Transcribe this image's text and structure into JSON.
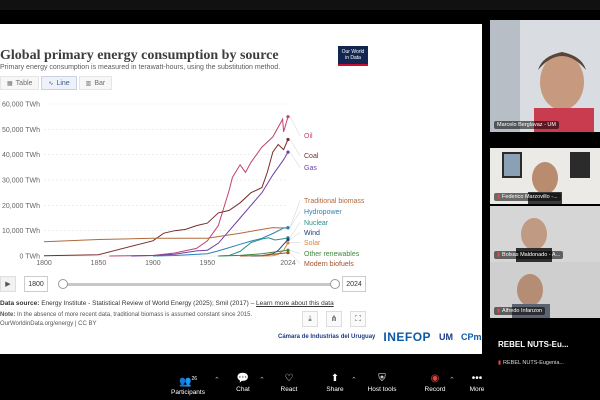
{
  "slide": {
    "title": "Global primary energy consumption by source",
    "subtitle": "Primary energy consumption is measured in terawatt-hours, using the substitution method.",
    "logo_line1": "Our World",
    "logo_line2": "in Data",
    "tabs": [
      {
        "label": "Table",
        "icon": "table-icon"
      },
      {
        "label": "Line",
        "icon": "line-chart-icon"
      },
      {
        "label": "Bar",
        "icon": "bar-chart-icon"
      }
    ],
    "timeline": {
      "start": "1800",
      "end": "2024"
    },
    "source_label": "Data source:",
    "source_text": "Energy Institute - Statistical Review of World Energy (2025); Smil (2017) –",
    "learn_more": "Learn more about this data",
    "note_label": "Note:",
    "note_text": "In the absence of more recent data, traditional biomass is assumed constant since 2015.",
    "license": "OurWorldinData.org/energy | CC BY",
    "sponsors": {
      "ciu": "Cámara de Industrias del Uruguay",
      "inefop": "INEFOP",
      "um": "UM",
      "cpml": "CPmL"
    }
  },
  "chart_data": {
    "type": "line",
    "title": "Global primary energy consumption by source",
    "ylabel": "",
    "xlim": [
      1800,
      2024
    ],
    "ylim": [
      0,
      60000
    ],
    "x_ticks": [
      1800,
      1850,
      1900,
      1950,
      2024
    ],
    "y_ticks": [
      {
        "value": 0,
        "label": "0 TWh"
      },
      {
        "value": 10000,
        "label": "10,000 TWh"
      },
      {
        "value": 20000,
        "label": "20,000 TWh"
      },
      {
        "value": 30000,
        "label": "30,000 TWh"
      },
      {
        "value": 40000,
        "label": "40,000 TWh"
      },
      {
        "value": 50000,
        "label": "50,000 TWh"
      },
      {
        "value": 60000,
        "label": "60,000 TWh"
      }
    ],
    "grid": true,
    "legend": "right",
    "series": [
      {
        "name": "Oil",
        "color": "#c1446f",
        "points": [
          [
            1860,
            0
          ],
          [
            1900,
            200
          ],
          [
            1920,
            1200
          ],
          [
            1940,
            3000
          ],
          [
            1950,
            6000
          ],
          [
            1960,
            12000
          ],
          [
            1970,
            26000
          ],
          [
            1973,
            31000
          ],
          [
            1980,
            36000
          ],
          [
            1985,
            33000
          ],
          [
            1990,
            37000
          ],
          [
            2000,
            43000
          ],
          [
            2010,
            47000
          ],
          [
            2019,
            54000
          ],
          [
            2020,
            49000
          ],
          [
            2024,
            55000
          ]
        ]
      },
      {
        "name": "Coal",
        "color": "#7b2b2b",
        "points": [
          [
            1800,
            100
          ],
          [
            1850,
            500
          ],
          [
            1900,
            6000
          ],
          [
            1910,
            9000
          ],
          [
            1920,
            10000
          ],
          [
            1930,
            10500
          ],
          [
            1940,
            12000
          ],
          [
            1950,
            13000
          ],
          [
            1960,
            17000
          ],
          [
            1970,
            18000
          ],
          [
            1980,
            21000
          ],
          [
            1990,
            25000
          ],
          [
            2000,
            27000
          ],
          [
            2005,
            33000
          ],
          [
            2010,
            41000
          ],
          [
            2015,
            44000
          ],
          [
            2020,
            42000
          ],
          [
            2024,
            46000
          ]
        ]
      },
      {
        "name": "Gas",
        "color": "#6c3fa5",
        "points": [
          [
            1880,
            0
          ],
          [
            1900,
            200
          ],
          [
            1920,
            700
          ],
          [
            1940,
            2000
          ],
          [
            1950,
            2300
          ],
          [
            1960,
            5000
          ],
          [
            1970,
            10000
          ],
          [
            1980,
            15000
          ],
          [
            1990,
            20000
          ],
          [
            2000,
            25000
          ],
          [
            2010,
            32000
          ],
          [
            2020,
            38000
          ],
          [
            2024,
            41000
          ]
        ]
      },
      {
        "name": "Traditional biomass",
        "color": "#b06a3b",
        "points": [
          [
            1800,
            5600
          ],
          [
            1850,
            6500
          ],
          [
            1900,
            7000
          ],
          [
            1950,
            7000
          ],
          [
            1980,
            9000
          ],
          [
            2000,
            10500
          ],
          [
            2010,
            11200
          ],
          [
            2015,
            11100
          ],
          [
            2024,
            11100
          ]
        ]
      },
      {
        "name": "Hydropower",
        "color": "#2d7fb8",
        "points": [
          [
            1900,
            0
          ],
          [
            1920,
            200
          ],
          [
            1950,
            900
          ],
          [
            1960,
            2000
          ],
          [
            1970,
            3300
          ],
          [
            1980,
            4600
          ],
          [
            1990,
            5900
          ],
          [
            2000,
            7000
          ],
          [
            2010,
            8900
          ],
          [
            2020,
            11000
          ],
          [
            2024,
            11200
          ]
        ]
      },
      {
        "name": "Nuclear",
        "color": "#2c8f8a",
        "points": [
          [
            1960,
            0
          ],
          [
            1970,
            200
          ],
          [
            1980,
            1800
          ],
          [
            1990,
            5300
          ],
          [
            2000,
            6700
          ],
          [
            2006,
            7200
          ],
          [
            2012,
            6300
          ],
          [
            2020,
            6800
          ],
          [
            2024,
            7200
          ]
        ]
      },
      {
        "name": "Wind",
        "color": "#1f3f7a",
        "points": [
          [
            1990,
            0
          ],
          [
            2000,
            80
          ],
          [
            2010,
            900
          ],
          [
            2015,
            2200
          ],
          [
            2020,
            4600
          ],
          [
            2024,
            6500
          ]
        ]
      },
      {
        "name": "Solar",
        "color": "#d9823b",
        "points": [
          [
            2000,
            0
          ],
          [
            2010,
            100
          ],
          [
            2015,
            700
          ],
          [
            2020,
            2200
          ],
          [
            2024,
            5200
          ]
        ]
      },
      {
        "name": "Other renewables",
        "color": "#3d8a3d",
        "points": [
          [
            1960,
            0
          ],
          [
            1980,
            250
          ],
          [
            2000,
            900
          ],
          [
            2010,
            1500
          ],
          [
            2024,
            2300
          ]
        ]
      },
      {
        "name": "Modern biofuels",
        "color": "#a0522d",
        "points": [
          [
            1980,
            0
          ],
          [
            2000,
            100
          ],
          [
            2010,
            700
          ],
          [
            2024,
            1300
          ]
        ]
      }
    ]
  },
  "participants": [
    {
      "name": "Marcelo Berglavaz - UM",
      "muted": false
    },
    {
      "name": "Federico Marzovillo -...",
      "muted": true
    },
    {
      "name": "Bolsas Maldonado - A...",
      "muted": true
    },
    {
      "name": "Alfredo Infanzon",
      "muted": true
    }
  ],
  "presenter_tile": {
    "name": "REBEL NUTS-Eu...",
    "sub": "REBEL NUTS-Eugenia..."
  },
  "toolbar": {
    "participants_label": "Participants",
    "participants_count": "26",
    "chat_label": "Chat",
    "react_label": "React",
    "share_label": "Share",
    "host_tools_label": "Host tools",
    "record_label": "Record",
    "more_label": "More"
  }
}
